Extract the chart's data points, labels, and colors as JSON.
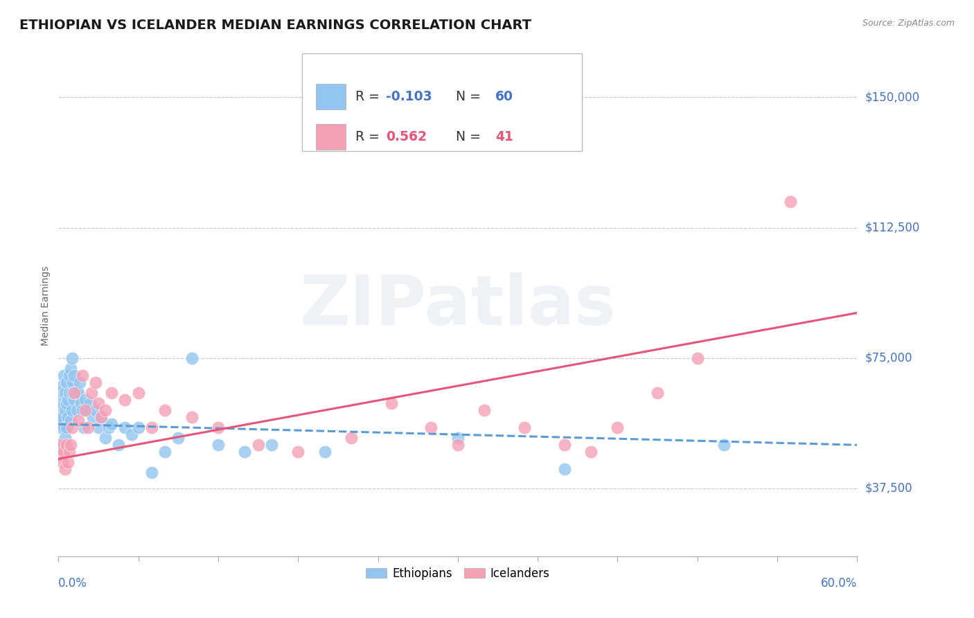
{
  "title": "ETHIOPIAN VS ICELANDER MEDIAN EARNINGS CORRELATION CHART",
  "source": "Source: ZipAtlas.com",
  "ylabel": "Median Earnings",
  "yticks": [
    37500,
    75000,
    112500,
    150000
  ],
  "ytick_labels": [
    "$37,500",
    "$75,000",
    "$112,500",
    "$150,000"
  ],
  "xmin": 0.0,
  "xmax": 0.6,
  "ymin": 18000,
  "ymax": 162000,
  "ethiopian_color": "#92C5F0",
  "icelander_color": "#F4A0B5",
  "eth_line_color": "#5B9BD5",
  "ice_line_color": "#E8537A",
  "title_fontsize": 14,
  "axis_label_fontsize": 10,
  "tick_label_fontsize": 12,
  "watermark": "ZIPatlas",
  "background_color": "#ffffff",
  "grid_color": "#c8c8c8",
  "ethiopian_points_x": [
    0.001,
    0.002,
    0.002,
    0.002,
    0.003,
    0.003,
    0.003,
    0.004,
    0.004,
    0.004,
    0.005,
    0.005,
    0.005,
    0.006,
    0.006,
    0.006,
    0.007,
    0.007,
    0.008,
    0.008,
    0.009,
    0.009,
    0.01,
    0.01,
    0.01,
    0.011,
    0.012,
    0.012,
    0.013,
    0.014,
    0.015,
    0.016,
    0.017,
    0.018,
    0.019,
    0.02,
    0.022,
    0.024,
    0.026,
    0.028,
    0.03,
    0.032,
    0.035,
    0.038,
    0.04,
    0.045,
    0.05,
    0.055,
    0.06,
    0.07,
    0.08,
    0.09,
    0.1,
    0.12,
    0.14,
    0.16,
    0.2,
    0.3,
    0.38,
    0.5
  ],
  "ethiopian_points_y": [
    55000,
    60000,
    65000,
    57000,
    58000,
    62000,
    67000,
    50000,
    55000,
    70000,
    52000,
    60000,
    65000,
    55000,
    62000,
    68000,
    58000,
    63000,
    65000,
    70000,
    57000,
    72000,
    60000,
    65000,
    75000,
    68000,
    63000,
    70000,
    65000,
    60000,
    65000,
    68000,
    62000,
    60000,
    55000,
    63000,
    60000,
    62000,
    58000,
    60000,
    55000,
    58000,
    52000,
    55000,
    56000,
    50000,
    55000,
    53000,
    55000,
    42000,
    48000,
    52000,
    75000,
    50000,
    48000,
    50000,
    48000,
    52000,
    43000,
    50000
  ],
  "icelander_points_x": [
    0.001,
    0.002,
    0.003,
    0.004,
    0.005,
    0.006,
    0.007,
    0.008,
    0.009,
    0.01,
    0.012,
    0.015,
    0.018,
    0.02,
    0.022,
    0.025,
    0.028,
    0.03,
    0.032,
    0.035,
    0.04,
    0.05,
    0.06,
    0.07,
    0.08,
    0.1,
    0.12,
    0.15,
    0.18,
    0.22,
    0.25,
    0.28,
    0.3,
    0.32,
    0.35,
    0.38,
    0.4,
    0.42,
    0.45,
    0.48,
    0.55
  ],
  "icelander_points_y": [
    50000,
    47000,
    45000,
    48000,
    43000,
    50000,
    45000,
    48000,
    50000,
    55000,
    65000,
    57000,
    70000,
    60000,
    55000,
    65000,
    68000,
    62000,
    58000,
    60000,
    65000,
    63000,
    65000,
    55000,
    60000,
    58000,
    55000,
    50000,
    48000,
    52000,
    62000,
    55000,
    50000,
    60000,
    55000,
    50000,
    48000,
    55000,
    65000,
    75000,
    120000
  ],
  "legend_R_eth": "R = -0.103",
  "legend_N_eth": "N = 60",
  "legend_R_ice": "R =  0.562",
  "legend_N_ice": "N = 41",
  "eth_label": "Ethiopians",
  "ice_label": "Icelanders"
}
